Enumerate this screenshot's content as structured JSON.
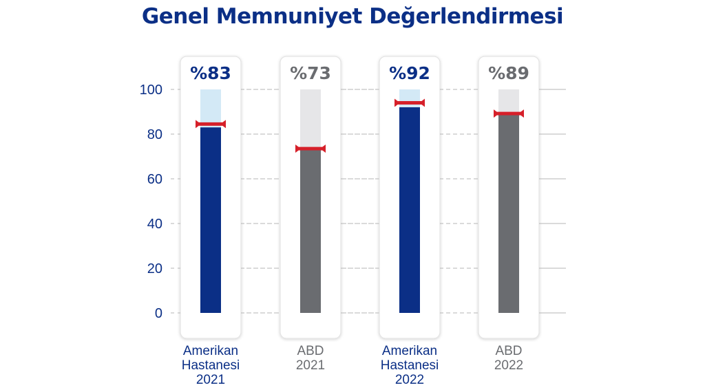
{
  "title": "Genel Memnuniyet Değerlendirmesi",
  "colors": {
    "navy": "#0b2f86",
    "navy_light": "#d3e9f6",
    "gray": "#6a6c70",
    "gray_light": "#e6e6e8",
    "marker": "#d6202a",
    "grid": "#b5b5b5"
  },
  "chart_data": {
    "type": "bar",
    "title": "Genel Memnuniyet Değerlendirmesi",
    "ylim": [
      0,
      100
    ],
    "yticks": [
      0,
      20,
      40,
      60,
      80,
      100
    ],
    "grid": true,
    "categories": [
      [
        "Amerikan",
        "Hastanesi",
        "2021"
      ],
      [
        "ABD",
        "2021"
      ],
      [
        "Amerikan",
        "Hastanesi",
        "2022"
      ],
      [
        "ABD",
        "2022"
      ]
    ],
    "values": [
      83,
      73,
      92,
      89
    ],
    "value_labels": [
      "%83",
      "%73",
      "%92",
      "%89"
    ],
    "markers": [
      84.5,
      73.5,
      94,
      89.2
    ],
    "bar_colors": [
      "navy",
      "gray",
      "navy",
      "gray"
    ]
  }
}
